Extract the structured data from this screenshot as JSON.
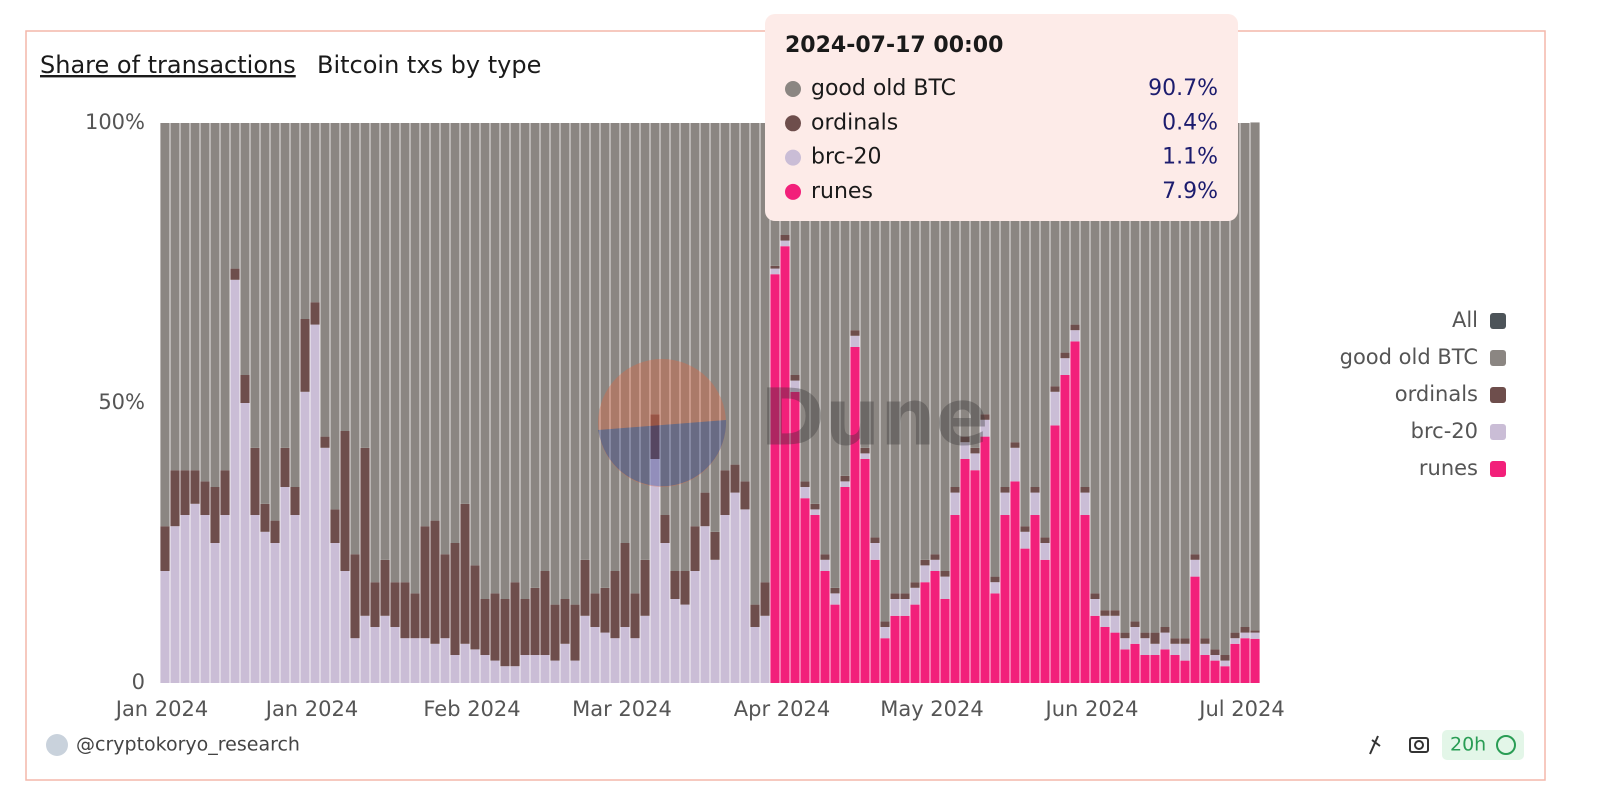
{
  "header": {
    "title": "Share of transactions",
    "subtitle": "Bitcoin txs by type"
  },
  "chart_data": {
    "type": "stacked-bar",
    "categories": [
      "Jan 2024",
      null,
      null,
      null,
      null,
      null,
      null,
      null,
      null,
      null,
      null,
      null,
      null,
      null,
      null,
      "Jan 2024",
      null,
      null,
      null,
      null,
      null,
      null,
      null,
      null,
      null,
      null,
      null,
      null,
      null,
      null,
      null,
      "Feb 2024",
      null,
      null,
      null,
      null,
      null,
      null,
      null,
      null,
      null,
      null,
      null,
      null,
      null,
      null,
      "Mar 2024",
      null,
      null,
      null,
      null,
      null,
      null,
      null,
      null,
      null,
      null,
      null,
      null,
      null,
      null,
      null,
      "Apr 2024",
      null,
      null,
      null,
      null,
      null,
      null,
      null,
      null,
      null,
      null,
      null,
      null,
      null,
      null,
      "May 2024",
      null,
      null,
      null,
      null,
      null,
      null,
      null,
      null,
      null,
      null,
      null,
      null,
      null,
      null,
      null,
      "Jun 2024",
      null,
      null,
      null,
      null,
      null,
      null,
      null,
      null,
      null,
      null,
      null,
      null,
      null,
      null,
      "Jul 2024",
      null
    ],
    "series": [
      {
        "name": "good old BTC",
        "color": "#8b8682",
        "values": [
          72,
          62,
          62,
          62,
          64,
          65,
          62,
          26,
          45,
          58,
          68,
          71,
          58,
          65,
          35,
          32,
          56,
          69,
          55,
          77,
          58,
          82,
          78,
          82,
          82,
          84,
          72,
          71,
          77,
          75,
          68,
          79,
          85,
          84,
          85,
          82,
          85,
          83,
          80,
          86,
          85,
          86,
          78,
          84,
          83,
          80,
          75,
          84,
          78,
          52,
          70,
          80,
          80,
          72,
          66,
          73,
          62,
          61,
          64,
          86,
          82,
          25.5,
          20,
          45,
          64,
          68,
          77,
          83,
          63,
          37,
          58,
          74,
          89,
          84,
          84,
          82,
          78,
          77,
          80,
          65,
          56,
          58,
          52,
          81,
          65,
          57,
          72,
          65,
          74,
          47,
          41,
          36,
          65,
          84,
          87,
          87,
          91,
          89,
          91,
          91,
          90,
          92,
          92,
          77,
          92,
          94,
          95,
          91,
          90,
          90.7
        ]
      },
      {
        "name": "ordinals",
        "color": "#6e4e4c",
        "values": [
          8,
          10,
          8,
          6,
          6,
          10,
          8,
          2,
          5,
          12,
          5,
          4,
          7,
          5,
          13,
          4,
          2,
          6,
          25,
          15,
          30,
          8,
          10,
          8,
          10,
          8,
          20,
          22,
          15,
          20,
          25,
          15,
          10,
          12,
          12,
          15,
          10,
          12,
          15,
          10,
          8,
          10,
          10,
          6,
          8,
          12,
          15,
          8,
          10,
          8,
          5,
          5,
          6,
          8,
          6,
          5,
          8,
          5,
          5,
          4,
          6,
          0.5,
          1,
          1,
          1,
          1,
          1,
          1,
          1,
          1,
          1,
          1,
          1,
          1,
          1,
          1,
          1,
          1,
          1,
          1,
          1,
          1,
          1,
          1,
          1,
          1,
          1,
          1,
          1,
          1,
          1,
          1,
          1,
          1,
          1,
          1,
          1,
          1,
          1,
          2,
          1,
          1,
          1,
          1,
          1,
          1,
          1,
          1,
          1,
          0.4
        ]
      },
      {
        "name": "brc-20",
        "color": "#cabdd6",
        "values": [
          20,
          28,
          30,
          32,
          30,
          25,
          30,
          72,
          50,
          30,
          27,
          25,
          35,
          30,
          52,
          64,
          42,
          25,
          20,
          8,
          12,
          10,
          12,
          10,
          8,
          8,
          8,
          7,
          8,
          5,
          7,
          6,
          5,
          4,
          3,
          3,
          5,
          5,
          5,
          4,
          7,
          4,
          12,
          10,
          9,
          8,
          10,
          8,
          12,
          40,
          25,
          15,
          14,
          20,
          28,
          22,
          30,
          34,
          31,
          10,
          12,
          1,
          1,
          2,
          2,
          1,
          2,
          2,
          1,
          2,
          1,
          3,
          2,
          3,
          3,
          3,
          3,
          2,
          4,
          4,
          3,
          3,
          3,
          2,
          4,
          6,
          3,
          4,
          3,
          6,
          3,
          2,
          4,
          3,
          2,
          3,
          2,
          3,
          3,
          2,
          3,
          2,
          3,
          3,
          2,
          1,
          1,
          1,
          1,
          1.1
        ]
      },
      {
        "name": "runes",
        "color": "#f2207a",
        "values": [
          0,
          0,
          0,
          0,
          0,
          0,
          0,
          0,
          0,
          0,
          0,
          0,
          0,
          0,
          0,
          0,
          0,
          0,
          0,
          0,
          0,
          0,
          0,
          0,
          0,
          0,
          0,
          0,
          0,
          0,
          0,
          0,
          0,
          0,
          0,
          0,
          0,
          0,
          0,
          0,
          0,
          0,
          0,
          0,
          0,
          0,
          0,
          0,
          0,
          0,
          0,
          0,
          0,
          0,
          0,
          0,
          0,
          0,
          0,
          0,
          0,
          73,
          78,
          52,
          33,
          30,
          20,
          14,
          35,
          60,
          40,
          22,
          8,
          12,
          12,
          14,
          18,
          20,
          15,
          30,
          40,
          38,
          44,
          16,
          30,
          36,
          24,
          30,
          22,
          46,
          55,
          61,
          30,
          12,
          10,
          9,
          6,
          7,
          5,
          5,
          6,
          5,
          4,
          19,
          5,
          4,
          3,
          7,
          8,
          7.9
        ]
      }
    ],
    "ylim": [
      0,
      100
    ],
    "yticks": [
      0,
      {
        "value": 50,
        "label": "50%"
      },
      {
        "value": 100,
        "label": "100%"
      }
    ],
    "legend": {
      "position": "right",
      "all_label": "All",
      "all_color": "#4d5459"
    },
    "tooltip": {
      "title": "2024-07-17 00:00",
      "labels": [
        "90.7%",
        "0.4%",
        "1.1%",
        "7.9%"
      ]
    },
    "watermark": "Dune"
  },
  "footer": {
    "author": "@cryptokoryo_research",
    "badge": "20h"
  }
}
